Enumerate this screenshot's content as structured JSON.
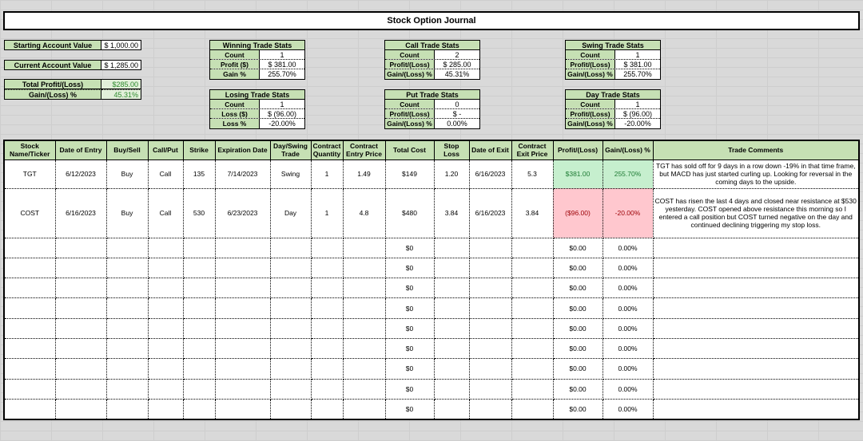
{
  "title": "Stock Option Journal",
  "account": {
    "starting_label": "Starting Account Value",
    "starting_value": "$ 1,000.00",
    "current_label": "Current Account Value",
    "current_value": "$ 1,285.00",
    "total_pl_label": "Total Profit/(Loss)",
    "total_pl_value": "$285.00",
    "gain_label": "Gain/(Loss) %",
    "gain_value": "45.31%"
  },
  "stats": {
    "winning": {
      "title": "Winning Trade Stats",
      "rows": [
        {
          "label": "Count",
          "value": "1"
        },
        {
          "label": "Profit ($)",
          "value": "$ 381.00"
        },
        {
          "label": "Gain %",
          "value": "255.70%"
        }
      ]
    },
    "losing": {
      "title": "Losing Trade Stats",
      "rows": [
        {
          "label": "Count",
          "value": "1"
        },
        {
          "label": "Loss ($)",
          "value": "$ (96.00)"
        },
        {
          "label": "Loss %",
          "value": "-20.00%"
        }
      ]
    },
    "call": {
      "title": "Call Trade Stats",
      "rows": [
        {
          "label": "Count",
          "value": "2"
        },
        {
          "label": "Profit/(Loss)",
          "value": "$ 285.00"
        },
        {
          "label": "Gain/(Loss) %",
          "value": "45.31%"
        }
      ]
    },
    "put": {
      "title": "Put Trade Stats",
      "rows": [
        {
          "label": "Count",
          "value": "0"
        },
        {
          "label": "Profit/(Loss)",
          "value": "$ -"
        },
        {
          "label": "Gain/(Loss) %",
          "value": "0.00%"
        }
      ]
    },
    "swing": {
      "title": "Swing Trade Stats",
      "rows": [
        {
          "label": "Count",
          "value": "1"
        },
        {
          "label": "Profit/(Loss)",
          "value": "$ 381.00"
        },
        {
          "label": "Gain/(Loss) %",
          "value": "255.70%"
        }
      ]
    },
    "day": {
      "title": "Day Trade Stats",
      "rows": [
        {
          "label": "Count",
          "value": "1"
        },
        {
          "label": "Profit/(Loss)",
          "value": "$ (96.00)"
        },
        {
          "label": "Gain/(Loss) %",
          "value": "-20.00%"
        }
      ]
    }
  },
  "table": {
    "headers": [
      "Stock Name/Ticker",
      "Date of Entry",
      "Buy/Sell",
      "Call/Put",
      "Strike",
      "Expiration Date",
      "Day/Swing Trade",
      "Contract Quantity",
      "Contract Entry Price",
      "Total Cost",
      "Stop Loss",
      "Date of Exit",
      "Contract Exit Price",
      "Profit/(Loss)",
      "Gain/(Loss) %",
      "Trade Comments"
    ],
    "rows": [
      [
        "TGT",
        "6/12/2023",
        "Buy",
        "Call",
        "135",
        "7/14/2023",
        "Swing",
        "1",
        "1.49",
        "$149",
        "1.20",
        "6/16/2023",
        "5.3",
        "$381.00",
        "255.70%",
        "TGT has sold off for 9 days in a row down -19% in that time frame, but MACD has just started curling up. Looking for reversal in the coming days to the upside."
      ],
      [
        "COST",
        "6/16/2023",
        "Buy",
        "Call",
        "530",
        "6/23/2023",
        "Day",
        "1",
        "4.8",
        "$480",
        "3.84",
        "6/16/2023",
        "3.84",
        "($96.00)",
        "-20.00%",
        "COST has risen the last 4 days and closed near resistance at $530 yesterday. COST opened above resistance this morning so I entered a call position but COST turned negative on the day and continued declining triggering my stop loss."
      ],
      [
        "",
        "",
        "",
        "",
        "",
        "",
        "",
        "",
        "",
        "$0",
        "",
        "",
        "",
        "$0.00",
        "0.00%",
        ""
      ],
      [
        "",
        "",
        "",
        "",
        "",
        "",
        "",
        "",
        "",
        "$0",
        "",
        "",
        "",
        "$0.00",
        "0.00%",
        ""
      ],
      [
        "",
        "",
        "",
        "",
        "",
        "",
        "",
        "",
        "",
        "$0",
        "",
        "",
        "",
        "$0.00",
        "0.00%",
        ""
      ],
      [
        "",
        "",
        "",
        "",
        "",
        "",
        "",
        "",
        "",
        "$0",
        "",
        "",
        "",
        "$0.00",
        "0.00%",
        ""
      ],
      [
        "",
        "",
        "",
        "",
        "",
        "",
        "",
        "",
        "",
        "$0",
        "",
        "",
        "",
        "$0.00",
        "0.00%",
        ""
      ],
      [
        "",
        "",
        "",
        "",
        "",
        "",
        "",
        "",
        "",
        "$0",
        "",
        "",
        "",
        "$0.00",
        "0.00%",
        ""
      ],
      [
        "",
        "",
        "",
        "",
        "",
        "",
        "",
        "",
        "",
        "$0",
        "",
        "",
        "",
        "$0.00",
        "0.00%",
        ""
      ],
      [
        "",
        "",
        "",
        "",
        "",
        "",
        "",
        "",
        "",
        "$0",
        "",
        "",
        "",
        "$0.00",
        "0.00%",
        ""
      ],
      [
        "",
        "",
        "",
        "",
        "",
        "",
        "",
        "",
        "",
        "$0",
        "",
        "",
        "",
        "$0.00",
        "0.00%",
        ""
      ]
    ]
  },
  "colors": {
    "header_green": "#c6e0b4",
    "profit_bg": "#c6efce",
    "loss_bg": "#ffc7ce"
  }
}
